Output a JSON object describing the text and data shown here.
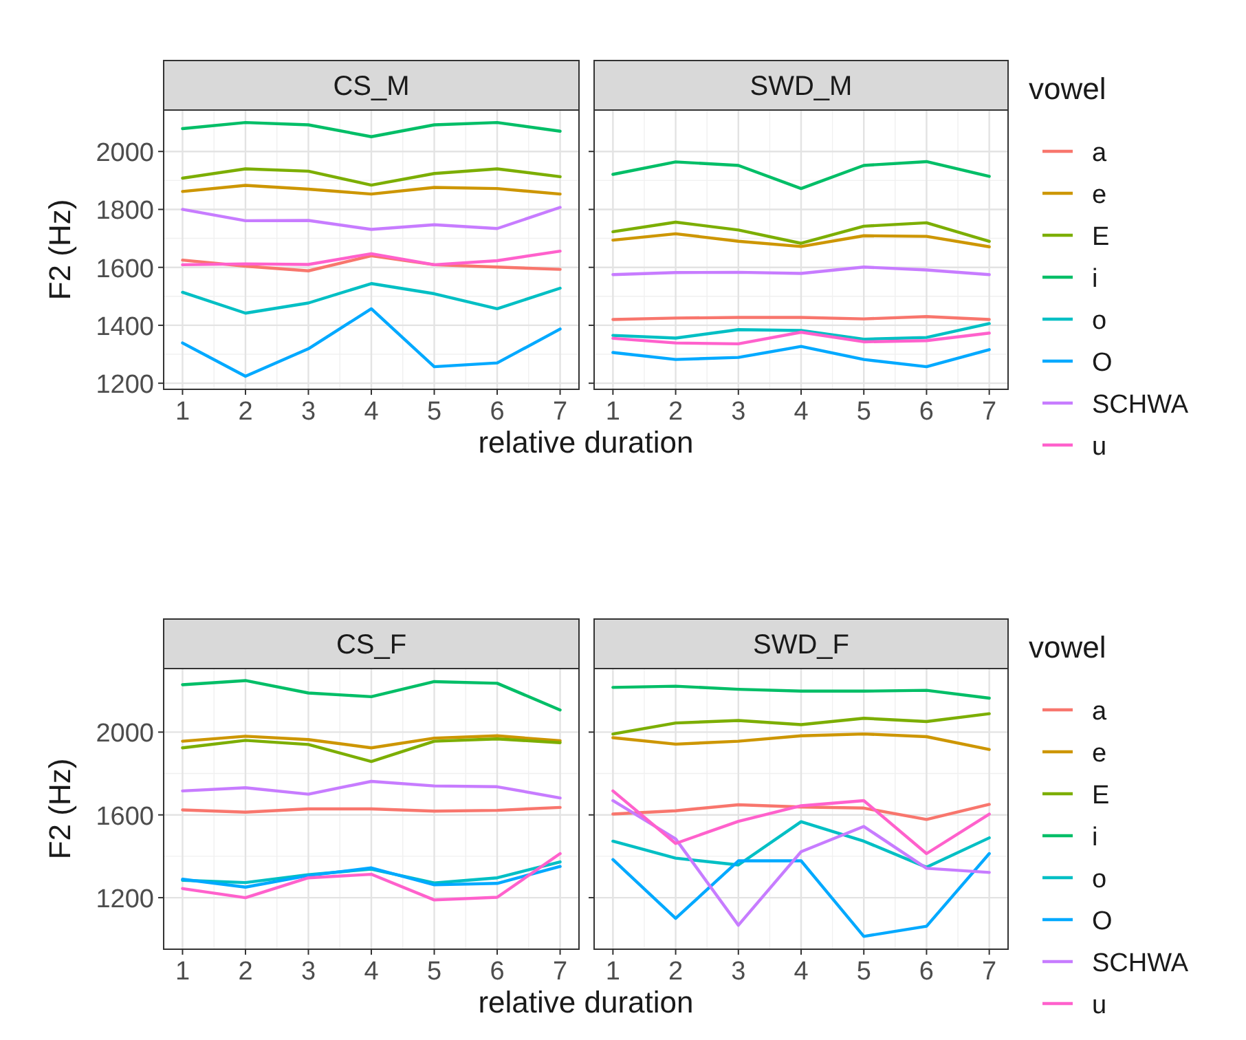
{
  "chart_data": [
    {
      "type": "line",
      "title": "CS_M",
      "ylabel": "F2 (Hz)",
      "xlabel": "relative duration",
      "x": [
        1,
        2,
        3,
        4,
        5,
        6,
        7
      ],
      "xlim": [
        0.7,
        7.3
      ],
      "xticks": [
        1,
        2,
        3,
        4,
        5,
        6,
        7
      ],
      "ylim": [
        1179,
        2143
      ],
      "yticks": [
        1200,
        1400,
        1600,
        1800,
        2000
      ],
      "grid": true,
      "legend": "right",
      "legend_title": "vowel",
      "series": [
        {
          "name": "a",
          "color": "#f8766d",
          "values": [
            1625,
            1604,
            1588,
            1640,
            1609,
            1601,
            1593
          ]
        },
        {
          "name": "e",
          "color": "#cd9600",
          "values": [
            1862,
            1883,
            1870,
            1853,
            1876,
            1872,
            1853
          ]
        },
        {
          "name": "E",
          "color": "#7cae00",
          "values": [
            1908,
            1940,
            1932,
            1884,
            1924,
            1940,
            1913
          ]
        },
        {
          "name": "i",
          "color": "#00be67",
          "values": [
            2079,
            2100,
            2092,
            2051,
            2092,
            2100,
            2070
          ]
        },
        {
          "name": "o",
          "color": "#00bfc4",
          "values": [
            1514,
            1442,
            1477,
            1544,
            1509,
            1457,
            1528
          ]
        },
        {
          "name": "O",
          "color": "#00a9ff",
          "values": [
            1339,
            1224,
            1319,
            1457,
            1257,
            1270,
            1387
          ]
        },
        {
          "name": "SCHWA",
          "color": "#c77cff",
          "values": [
            1800,
            1761,
            1762,
            1731,
            1747,
            1734,
            1807
          ]
        },
        {
          "name": "u",
          "color": "#ff61cc",
          "values": [
            1609,
            1612,
            1610,
            1647,
            1609,
            1623,
            1656
          ]
        }
      ]
    },
    {
      "type": "line",
      "title": "SWD_M",
      "x": [
        1,
        2,
        3,
        4,
        5,
        6,
        7
      ],
      "xlim": [
        0.7,
        7.3
      ],
      "xticks": [
        1,
        2,
        3,
        4,
        5,
        6,
        7
      ],
      "ylim": [
        1179,
        2143
      ],
      "yticks": [
        1200,
        1400,
        1600,
        1800,
        2000
      ],
      "tick_labels": "x",
      "grid": true,
      "series": [
        {
          "color": "#f8766d",
          "values": [
            1420,
            1425,
            1427,
            1427,
            1422,
            1430,
            1420
          ]
        },
        {
          "color": "#cd9600",
          "values": [
            1694,
            1716,
            1690,
            1672,
            1709,
            1707,
            1671
          ]
        },
        {
          "color": "#7cae00",
          "values": [
            1723,
            1756,
            1729,
            1683,
            1742,
            1754,
            1690
          ]
        },
        {
          "color": "#00be67",
          "values": [
            1921,
            1964,
            1952,
            1872,
            1952,
            1965,
            1914
          ]
        },
        {
          "color": "#00bfc4",
          "values": [
            1365,
            1356,
            1385,
            1382,
            1352,
            1358,
            1406
          ]
        },
        {
          "color": "#00a9ff",
          "values": [
            1306,
            1282,
            1289,
            1327,
            1282,
            1257,
            1316
          ]
        },
        {
          "color": "#c77cff",
          "values": [
            1575,
            1582,
            1583,
            1579,
            1601,
            1591,
            1575
          ]
        },
        {
          "color": "#ff61cc",
          "values": [
            1355,
            1339,
            1336,
            1376,
            1343,
            1347,
            1373
          ]
        }
      ]
    },
    {
      "type": "line",
      "title": "CS_F",
      "ylabel": "F2 (Hz)",
      "xlabel": "relative duration",
      "x": [
        1,
        2,
        3,
        4,
        5,
        6,
        7
      ],
      "xlim": [
        0.7,
        7.3
      ],
      "xticks": [
        1,
        2,
        3,
        4,
        5,
        6,
        7
      ],
      "ylim": [
        951,
        2307
      ],
      "yticks": [
        1200,
        1600,
        2000
      ],
      "grid": true,
      "legend": "right",
      "legend_title": "vowel",
      "series": [
        {
          "name": "a",
          "color": "#f8766d",
          "values": [
            1624,
            1613,
            1629,
            1629,
            1618,
            1622,
            1636
          ]
        },
        {
          "name": "e",
          "color": "#cd9600",
          "values": [
            1956,
            1980,
            1964,
            1924,
            1971,
            1982,
            1958
          ]
        },
        {
          "name": "E",
          "color": "#7cae00",
          "values": [
            1924,
            1960,
            1940,
            1858,
            1956,
            1967,
            1949
          ]
        },
        {
          "name": "i",
          "color": "#00be67",
          "values": [
            2229,
            2249,
            2189,
            2171,
            2244,
            2236,
            2107
          ]
        },
        {
          "name": "o",
          "color": "#00bfc4",
          "values": [
            1284,
            1273,
            1311,
            1338,
            1271,
            1296,
            1373
          ]
        },
        {
          "name": "O",
          "color": "#00a9ff",
          "values": [
            1289,
            1251,
            1307,
            1344,
            1262,
            1269,
            1351
          ]
        },
        {
          "name": "SCHWA",
          "color": "#c77cff",
          "values": [
            1716,
            1731,
            1700,
            1762,
            1740,
            1736,
            1682
          ]
        },
        {
          "name": "u",
          "color": "#ff61cc",
          "values": [
            1244,
            1200,
            1296,
            1313,
            1189,
            1202,
            1413
          ]
        }
      ]
    },
    {
      "type": "line",
      "title": "SWD_F",
      "x": [
        1,
        2,
        3,
        4,
        5,
        6,
        7
      ],
      "xlim": [
        0.7,
        7.3
      ],
      "xticks": [
        1,
        2,
        3,
        4,
        5,
        6,
        7
      ],
      "ylim": [
        951,
        2307
      ],
      "yticks": [
        1200,
        1600,
        2000
      ],
      "tick_labels": "x",
      "grid": true,
      "series": [
        {
          "color": "#f8766d",
          "values": [
            1604,
            1620,
            1649,
            1638,
            1633,
            1578,
            1651
          ]
        },
        {
          "color": "#cd9600",
          "values": [
            1973,
            1942,
            1956,
            1982,
            1991,
            1978,
            1916
          ]
        },
        {
          "color": "#7cae00",
          "values": [
            1991,
            2044,
            2056,
            2036,
            2067,
            2051,
            2089
          ]
        },
        {
          "color": "#00be67",
          "values": [
            2216,
            2222,
            2207,
            2198,
            2198,
            2202,
            2164
          ]
        },
        {
          "color": "#00bfc4",
          "values": [
            1473,
            1391,
            1358,
            1567,
            1473,
            1347,
            1489
          ]
        },
        {
          "color": "#00a9ff",
          "values": [
            1384,
            1100,
            1378,
            1378,
            1013,
            1062,
            1413
          ]
        },
        {
          "color": "#c77cff",
          "values": [
            1669,
            1484,
            1067,
            1422,
            1544,
            1342,
            1322
          ]
        },
        {
          "color": "#ff61cc",
          "values": [
            1716,
            1462,
            1569,
            1644,
            1669,
            1413,
            1604
          ]
        }
      ]
    }
  ]
}
